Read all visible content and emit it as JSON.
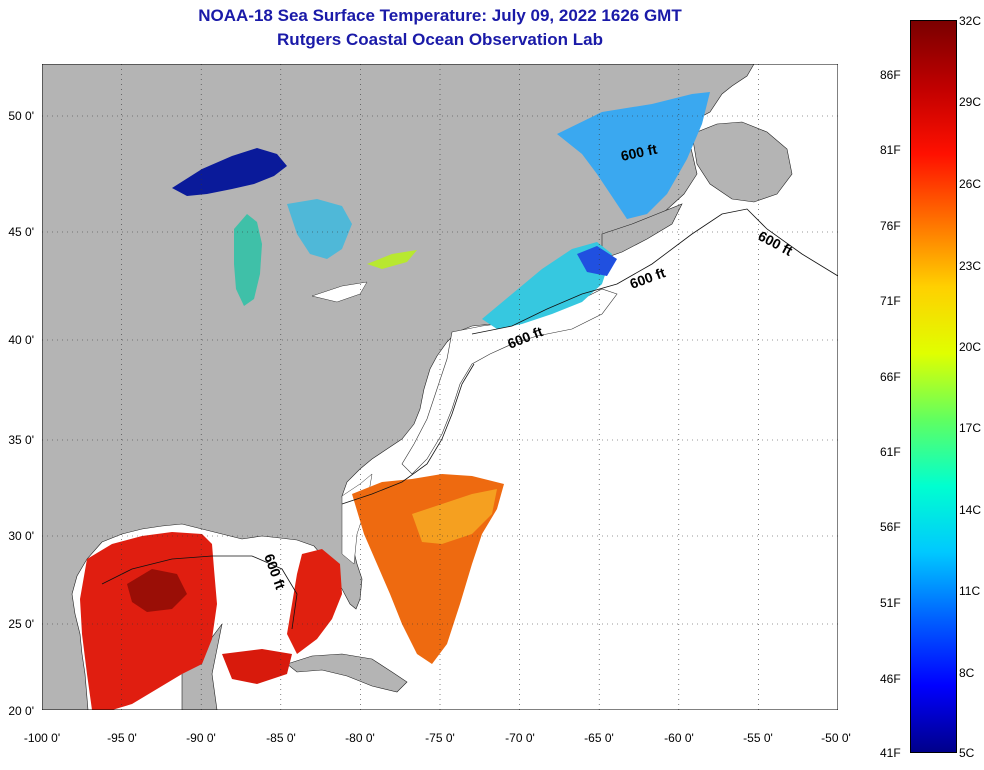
{
  "header": {
    "title": "NOAA-18 Sea Surface Temperature:  July 09, 2022 1626 GMT",
    "subtitle": "Rutgers Coastal Ocean Observation Lab"
  },
  "map": {
    "lon_range": [
      -100,
      -50
    ],
    "lat_range": [
      20,
      52.5
    ],
    "lon_ticks": [
      "-100 0'",
      "-95 0'",
      "-90 0'",
      "-85 0'",
      "-80 0'",
      "-75 0'",
      "-70 0'",
      "-65 0'",
      "-60 0'",
      "-55 0'",
      "-50 0'"
    ],
    "lat_ticks": [
      "20 0'",
      "25 0'",
      "30 0'",
      "35 0'",
      "40 0'",
      "45 0'",
      "50 0'"
    ],
    "depth_contour_label": "600 ft",
    "colors": {
      "land": "#b4b4b4",
      "ocean_nodata": "#ffffff",
      "grid": "#000000"
    }
  },
  "colorbar": {
    "celsius_labels": [
      "32C",
      "29C",
      "26C",
      "23C",
      "20C",
      "17C",
      "14C",
      "11C",
      "8C",
      "5C"
    ],
    "fahrenheit_labels": [
      "86F",
      "81F",
      "76F",
      "71F",
      "66F",
      "61F",
      "56F",
      "51F",
      "46F",
      "41F"
    ],
    "range_c": [
      5,
      32
    ],
    "gradient": [
      "#00008a",
      "#0000ff",
      "#0060ff",
      "#00c8ff",
      "#00ffd0",
      "#60ff60",
      "#e0ff00",
      "#ffd000",
      "#ff7000",
      "#ff1000",
      "#c00000",
      "#7a0000"
    ]
  }
}
